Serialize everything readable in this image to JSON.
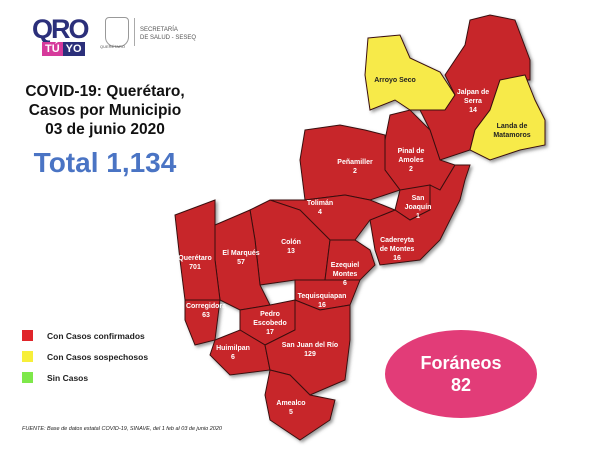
{
  "header": {
    "logo_main": "QRO",
    "logo_tu": "TÚ",
    "logo_yo": "YO",
    "seal_label": "QUERÉTARO",
    "secretaria_line1": "SECRETARÍA",
    "secretaria_line2": "DE SALUD - SESEQ"
  },
  "title": {
    "line1": "COVID-19: Querétaro,",
    "line2": "Casos por Municipio",
    "line3": "03 de junio 2020"
  },
  "total": "Total 1,134",
  "legend": [
    {
      "label": "Con Casos confirmados",
      "color": "#e0252a"
    },
    {
      "label": "Con Casos sospechosos",
      "color": "#f7ef3a"
    },
    {
      "label": "Sin Casos",
      "color": "#7ee84a"
    }
  ],
  "foraneos": {
    "label": "Foráneos",
    "value": "82",
    "color": "#e23c78"
  },
  "source": "FUENTE: Base de datos estatal COVID-19, SINAVE, del 1 feb al 03 de junio 2020",
  "colors": {
    "confirmed": "#c7262b",
    "suspected": "#f7ea4a"
  },
  "municipalities": [
    {
      "name": "Arroyo Seco",
      "line2": "",
      "cases": "",
      "status": "suspected"
    },
    {
      "name": "Jalpan de",
      "line2": "Serra",
      "cases": "14",
      "status": "confirmed"
    },
    {
      "name": "Landa de",
      "line2": "Matamoros",
      "cases": "",
      "status": "suspected"
    },
    {
      "name": "Pinal de",
      "line2": "Amoles",
      "cases": "2",
      "status": "confirmed"
    },
    {
      "name": "Peñamiller",
      "line2": "",
      "cases": "2",
      "status": "confirmed"
    },
    {
      "name": "San",
      "line2": "Joaquín",
      "cases": "1",
      "status": "confirmed"
    },
    {
      "name": "Cadereyta",
      "line2": "de Montes",
      "cases": "16",
      "status": "confirmed"
    },
    {
      "name": "Tolimán",
      "line2": "",
      "cases": "4",
      "status": "confirmed"
    },
    {
      "name": "Colón",
      "line2": "",
      "cases": "13",
      "status": "confirmed"
    },
    {
      "name": "El Marqués",
      "line2": "",
      "cases": "57",
      "status": "confirmed"
    },
    {
      "name": "Ezequiel",
      "line2": "Montes",
      "cases": "6",
      "status": "confirmed"
    },
    {
      "name": "Querétaro",
      "line2": "",
      "cases": "701",
      "status": "confirmed"
    },
    {
      "name": "Corregidora",
      "line2": "",
      "cases": "63",
      "status": "confirmed"
    },
    {
      "name": "Pedro",
      "line2": "Escobedo",
      "cases": "17",
      "status": "confirmed"
    },
    {
      "name": "Tequisquiapan",
      "line2": "",
      "cases": "16",
      "status": "confirmed"
    },
    {
      "name": "Huimilpan",
      "line2": "",
      "cases": "6",
      "status": "confirmed"
    },
    {
      "name": "San Juan del Río",
      "line2": "",
      "cases": "129",
      "status": "confirmed"
    },
    {
      "name": "Amealco",
      "line2": "",
      "cases": "5",
      "status": "confirmed"
    }
  ]
}
